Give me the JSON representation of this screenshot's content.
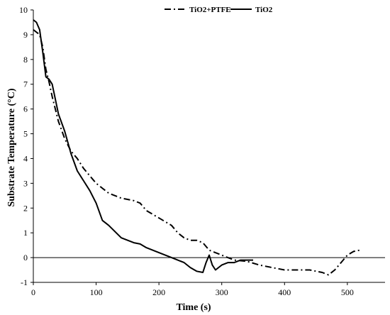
{
  "chart_data": {
    "type": "line",
    "xlabel": "Time (s)",
    "ylabel": "Substrate Temperature (°C)",
    "xlim": [
      0,
      560
    ],
    "ylim": [
      -1,
      10
    ],
    "x_ticks": [
      0,
      100,
      200,
      300,
      400,
      500
    ],
    "y_ticks": [
      -1,
      0,
      1,
      2,
      3,
      4,
      5,
      6,
      7,
      8,
      9,
      10
    ],
    "reference_line_y": 0,
    "legend_position": "top",
    "grid": false,
    "series": [
      {
        "name": "TiO2+PTFE",
        "style": "dash-dot",
        "color": "#000000",
        "x": [
          0,
          10,
          15,
          20,
          25,
          30,
          40,
          50,
          60,
          70,
          80,
          90,
          100,
          120,
          140,
          160,
          170,
          180,
          200,
          220,
          230,
          240,
          250,
          260,
          270,
          280,
          300,
          320,
          340,
          360,
          380,
          400,
          420,
          440,
          460,
          470,
          480,
          490,
          500,
          510,
          520
        ],
        "y": [
          9.2,
          9.0,
          8.5,
          7.6,
          7.1,
          6.5,
          5.5,
          4.8,
          4.3,
          4.0,
          3.6,
          3.3,
          3.0,
          2.6,
          2.4,
          2.3,
          2.2,
          1.9,
          1.6,
          1.3,
          1.0,
          0.8,
          0.7,
          0.7,
          0.6,
          0.3,
          0.1,
          -0.1,
          -0.15,
          -0.3,
          -0.4,
          -0.5,
          -0.5,
          -0.5,
          -0.6,
          -0.7,
          -0.5,
          -0.2,
          0.1,
          0.25,
          0.3
        ]
      },
      {
        "name": "TiO2",
        "style": "solid",
        "color": "#000000",
        "x": [
          0,
          5,
          10,
          15,
          20,
          25,
          30,
          40,
          50,
          60,
          70,
          80,
          90,
          100,
          110,
          120,
          140,
          160,
          170,
          180,
          200,
          220,
          240,
          250,
          260,
          270,
          275,
          280,
          285,
          290,
          300,
          310,
          320,
          330,
          340,
          350
        ],
        "y": [
          9.6,
          9.5,
          9.2,
          8.3,
          7.3,
          7.2,
          7.0,
          5.8,
          5.1,
          4.2,
          3.5,
          3.1,
          2.7,
          2.2,
          1.5,
          1.3,
          0.8,
          0.6,
          0.55,
          0.4,
          0.2,
          0.0,
          -0.2,
          -0.4,
          -0.55,
          -0.6,
          -0.2,
          0.1,
          -0.3,
          -0.5,
          -0.3,
          -0.2,
          -0.2,
          -0.1,
          -0.1,
          -0.1
        ]
      }
    ]
  }
}
